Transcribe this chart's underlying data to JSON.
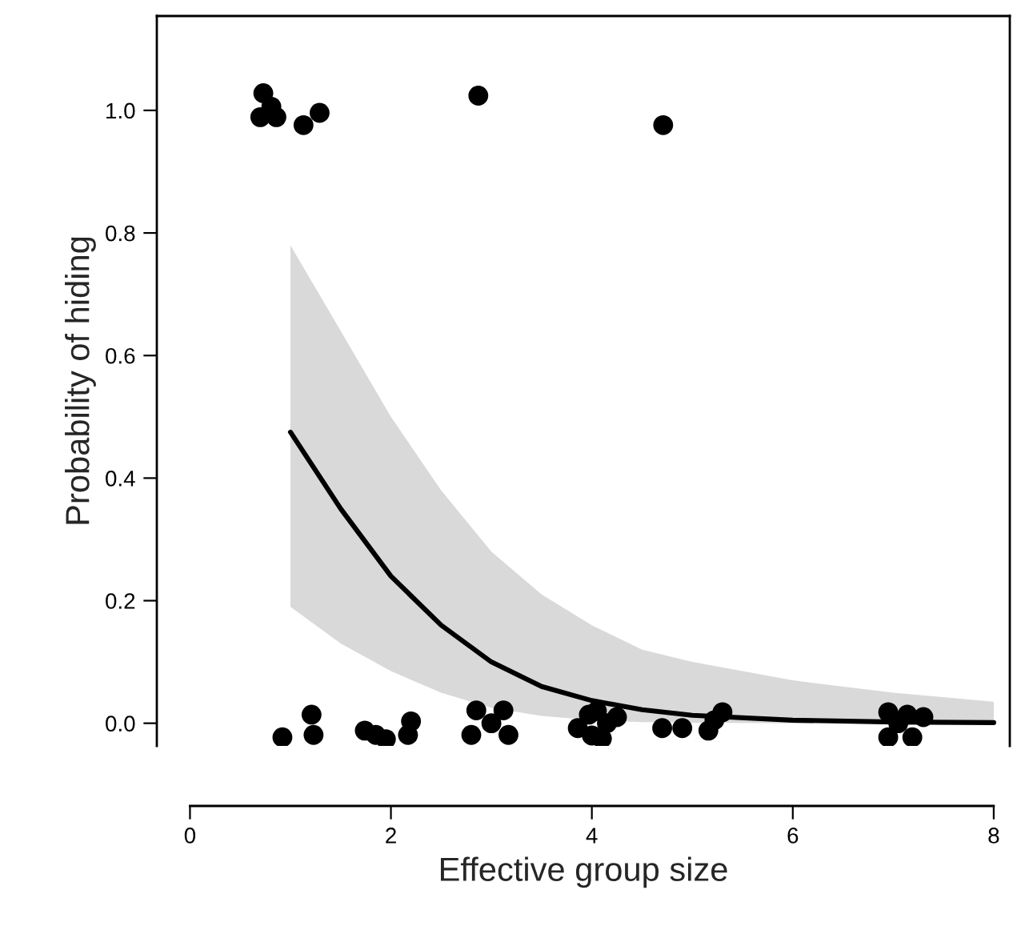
{
  "chart_data": {
    "type": "scatter",
    "xlabel": "Effective group size",
    "ylabel": "Probability of hiding",
    "xlim": [
      -0.33,
      8.16
    ],
    "ylim": [
      -0.037,
      1.154
    ],
    "xticks": [
      0,
      2,
      4,
      6,
      8
    ],
    "yticks": [
      {
        "value": 0,
        "label": "0.0"
      },
      {
        "value": 0.2,
        "label": "0.2"
      },
      {
        "value": 0.4,
        "label": "0.4"
      },
      {
        "value": 0.6,
        "label": "0.6"
      },
      {
        "value": 0.8,
        "label": "0.8"
      },
      {
        "value": 1,
        "label": "1.0"
      }
    ],
    "grid": false,
    "series": [
      {
        "type": "line",
        "color": "#000000",
        "line_style": "solid",
        "x": [
          1,
          1.5,
          2,
          2.5,
          3,
          3.5,
          4,
          4.5,
          5,
          6,
          7,
          8
        ],
        "values": [
          0.475,
          0.35,
          0.24,
          0.16,
          0.1,
          0.06,
          0.037,
          0.022,
          0.013,
          0.005,
          0.002,
          0.001
        ],
        "lower": [
          0.19,
          0.13,
          0.085,
          0.05,
          0.025,
          0.012,
          0.005,
          0.002,
          0.001,
          0,
          0,
          0
        ],
        "upper": [
          0.78,
          0.64,
          0.5,
          0.38,
          0.28,
          0.21,
          0.16,
          0.12,
          0.1,
          0.07,
          0.05,
          0.035
        ]
      },
      {
        "color": "#000000",
        "marker": "circle",
        "x": [
          0.73,
          0.7,
          0.86,
          0.81,
          1.13,
          1.29,
          2.87,
          4.71,
          0.92,
          1.21,
          1.23,
          1.74,
          1.95,
          1.85,
          2.2,
          2.17,
          2.85,
          2.8,
          3.12,
          3.17,
          3.0,
          3.86,
          3.97,
          4.0,
          4.05,
          4.15,
          4.25,
          4.1,
          4.7,
          4.9,
          5.16,
          5.3,
          5.22,
          6.95,
          6.95,
          7.19,
          7.14,
          7.3,
          7.05
        ],
        "values": [
          1.028,
          0.989,
          0.989,
          1.006,
          0.976,
          0.996,
          1.024,
          0.976,
          -0.023,
          0.014,
          -0.019,
          -0.012,
          -0.026,
          -0.019,
          0.003,
          -0.019,
          0.021,
          -0.019,
          0.021,
          -0.019,
          0.0,
          -0.008,
          0.014,
          -0.02,
          0.02,
          0.0,
          0.01,
          -0.025,
          -0.008,
          -0.008,
          -0.012,
          0.018,
          0.005,
          0.018,
          -0.023,
          -0.023,
          0.014,
          0.01,
          0.0
        ]
      }
    ]
  }
}
